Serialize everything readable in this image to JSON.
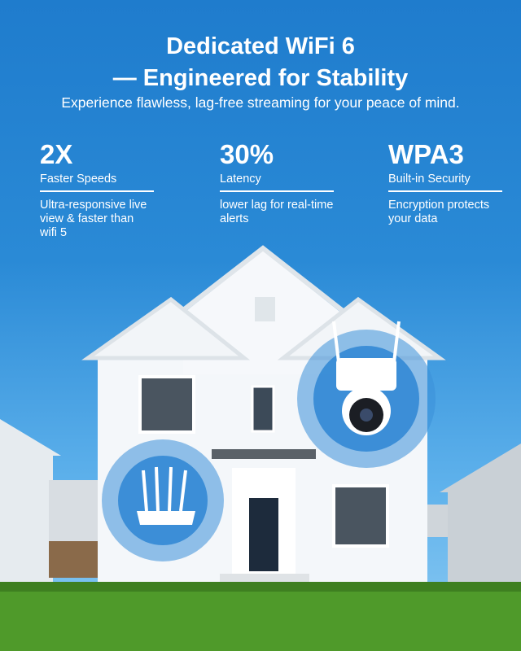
{
  "header": {
    "title_line1": "Dedicated WiFi 6",
    "title_line2": "— Engineered for Stability",
    "subtitle": "Experience flawless, lag-free streaming for your peace of mind."
  },
  "stats": [
    {
      "value": "2X",
      "label": "Faster Speeds",
      "description": "Ultra-responsive live view & faster than wifi 5"
    },
    {
      "value": "30%",
      "label": "Latency",
      "description": "lower lag for real-time alerts"
    },
    {
      "value": "WPA3",
      "label": "Built-in Security",
      "description": "Encryption protects your data"
    }
  ],
  "icons": [
    "wifi-router-icon",
    "security-camera-icon"
  ],
  "colors": {
    "sky": "#2a8ad6",
    "highlight": "#3a8fd9",
    "grass": "#4f9a2a"
  }
}
